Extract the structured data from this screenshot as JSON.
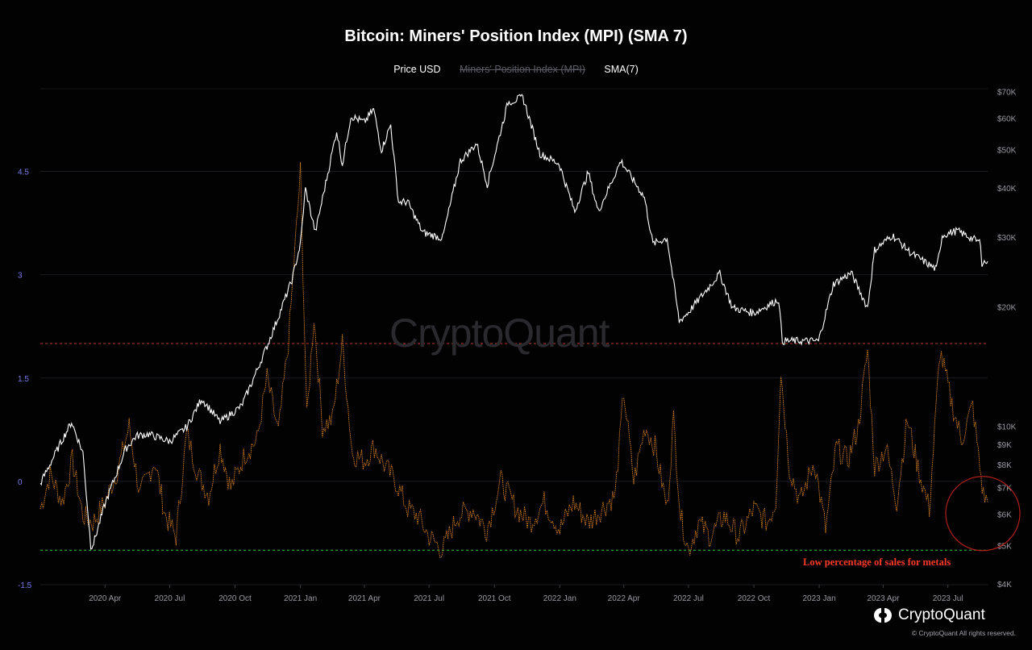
{
  "title": "Bitcoin: Miners' Position Index (MPI) (SMA 7)",
  "legend": {
    "price": "Price USD",
    "mpi": "Miners' Position Index (MPI)",
    "sma": "SMA(7)"
  },
  "watermark": "CryptoQuant",
  "annotation": "Low percentage of sales for metals",
  "brand": {
    "name": "CryptoQuant",
    "copyright": "© CryptoQuant All rights reserved."
  },
  "chart_data": {
    "type": "line",
    "title": "Bitcoin: Miners' Position Index (MPI) (SMA 7)",
    "x_ticks": [
      "2020 Apr",
      "2020 Jul",
      "2020 Oct",
      "2021 Jan",
      "2021 Apr",
      "2021 Jul",
      "2021 Oct",
      "2022 Jan",
      "2022 Apr",
      "2022 Jul",
      "2022 Oct",
      "2023 Jan",
      "2023 Apr",
      "2023 Jul"
    ],
    "xlim": [
      "2020-01-01",
      "2023-08-26"
    ],
    "left_axis": {
      "ticks": [
        4.5,
        3,
        1.5,
        0,
        -1.5
      ],
      "ylim": [
        -1.5,
        5.7
      ]
    },
    "right_axis": {
      "scale": "log",
      "ticks": [
        "$70K",
        "$60K",
        "$50K",
        "$40K",
        "$30K",
        "$20K",
        "$10K",
        "$9K",
        "$8K",
        "$7K",
        "$6K",
        "$5K",
        "$4K"
      ],
      "tick_values": [
        70000,
        60000,
        50000,
        40000,
        30000,
        20000,
        10000,
        9000,
        8000,
        7000,
        6000,
        5000,
        4000
      ],
      "ylim": [
        4000,
        71500
      ]
    },
    "reference_lines": [
      {
        "value": 2.0,
        "color": "#c0392b",
        "style": "dashed"
      },
      {
        "value": -1.0,
        "color": "#2ecc40",
        "style": "dashed"
      }
    ],
    "series": [
      {
        "name": "Price USD",
        "axis": "right",
        "color": "#ffffff",
        "points": [
          [
            "2020-01-01",
            7200
          ],
          [
            "2020-02-01",
            9300
          ],
          [
            "2020-02-14",
            10300
          ],
          [
            "2020-03-01",
            8600
          ],
          [
            "2020-03-12",
            5000
          ],
          [
            "2020-03-16",
            5100
          ],
          [
            "2020-04-01",
            6400
          ],
          [
            "2020-04-30",
            8800
          ],
          [
            "2020-05-15",
            9500
          ],
          [
            "2020-06-01",
            9600
          ],
          [
            "2020-07-01",
            9200
          ],
          [
            "2020-07-25",
            10000
          ],
          [
            "2020-08-15",
            11800
          ],
          [
            "2020-09-10",
            10300
          ],
          [
            "2020-10-10",
            11300
          ],
          [
            "2020-10-25",
            13000
          ],
          [
            "2020-11-15",
            16000
          ],
          [
            "2020-12-01",
            19000
          ],
          [
            "2020-12-20",
            23500
          ],
          [
            "2021-01-01",
            29000
          ],
          [
            "2021-01-08",
            40000
          ],
          [
            "2021-01-22",
            31000
          ],
          [
            "2021-02-10",
            45000
          ],
          [
            "2021-02-21",
            56000
          ],
          [
            "2021-03-01",
            46000
          ],
          [
            "2021-03-13",
            61000
          ],
          [
            "2021-04-01",
            58800
          ],
          [
            "2021-04-14",
            63500
          ],
          [
            "2021-04-25",
            50000
          ],
          [
            "2021-05-08",
            58000
          ],
          [
            "2021-05-19",
            37000
          ],
          [
            "2021-06-01",
            37000
          ],
          [
            "2021-06-22",
            31000
          ],
          [
            "2021-07-20",
            30000
          ],
          [
            "2021-08-14",
            47000
          ],
          [
            "2021-09-06",
            52000
          ],
          [
            "2021-09-21",
            41000
          ],
          [
            "2021-10-20",
            66000
          ],
          [
            "2021-11-10",
            68000
          ],
          [
            "2021-12-04",
            49000
          ],
          [
            "2021-12-31",
            46200
          ],
          [
            "2022-01-22",
            35000
          ],
          [
            "2022-02-10",
            44000
          ],
          [
            "2022-02-24",
            35000
          ],
          [
            "2022-03-28",
            47000
          ],
          [
            "2022-04-30",
            38000
          ],
          [
            "2022-05-12",
            29000
          ],
          [
            "2022-06-01",
            30000
          ],
          [
            "2022-06-18",
            18500
          ],
          [
            "2022-07-01",
            19500
          ],
          [
            "2022-08-14",
            24400
          ],
          [
            "2022-09-01",
            20000
          ],
          [
            "2022-10-01",
            19400
          ],
          [
            "2022-11-05",
            21000
          ],
          [
            "2022-11-10",
            16500
          ],
          [
            "2022-12-31",
            16500
          ],
          [
            "2023-01-21",
            23000
          ],
          [
            "2023-02-15",
            24500
          ],
          [
            "2023-03-10",
            20000
          ],
          [
            "2023-03-20",
            28000
          ],
          [
            "2023-04-14",
            30500
          ],
          [
            "2023-05-10",
            27500
          ],
          [
            "2023-06-15",
            25000
          ],
          [
            "2023-06-23",
            30500
          ],
          [
            "2023-07-14",
            31300
          ],
          [
            "2023-08-16",
            29200
          ],
          [
            "2023-08-18",
            26000
          ],
          [
            "2023-08-26",
            26200
          ]
        ]
      },
      {
        "name": "SMA(7)",
        "axis": "left",
        "color": "#f7931a",
        "points": [
          [
            "2020-01-01",
            -0.4
          ],
          [
            "2020-01-15",
            0.1
          ],
          [
            "2020-02-01",
            -0.3
          ],
          [
            "2020-02-15",
            0.3
          ],
          [
            "2020-03-01",
            -0.5
          ],
          [
            "2020-03-15",
            -0.6
          ],
          [
            "2020-04-01",
            -0.3
          ],
          [
            "2020-04-20",
            0.2
          ],
          [
            "2020-05-05",
            0.8
          ],
          [
            "2020-05-20",
            -0.2
          ],
          [
            "2020-06-10",
            0.3
          ],
          [
            "2020-06-25",
            -0.5
          ],
          [
            "2020-07-10",
            -0.8
          ],
          [
            "2020-07-25",
            0.7
          ],
          [
            "2020-08-10",
            0.1
          ],
          [
            "2020-08-25",
            -0.2
          ],
          [
            "2020-09-10",
            0.5
          ],
          [
            "2020-09-25",
            -0.1
          ],
          [
            "2020-10-15",
            0.4
          ],
          [
            "2020-11-01",
            0.6
          ],
          [
            "2020-11-15",
            1.5
          ],
          [
            "2020-12-01",
            0.7
          ],
          [
            "2020-12-15",
            2.0
          ],
          [
            "2021-01-01",
            4.5
          ],
          [
            "2021-01-10",
            0.9
          ],
          [
            "2021-01-20",
            2.4
          ],
          [
            "2021-02-01",
            0.8
          ],
          [
            "2021-02-15",
            0.9
          ],
          [
            "2021-03-01",
            2.0
          ],
          [
            "2021-03-15",
            0.4
          ],
          [
            "2021-04-01",
            0.3
          ],
          [
            "2021-04-15",
            0.5
          ],
          [
            "2021-05-01",
            0.2
          ],
          [
            "2021-05-15",
            0.0
          ],
          [
            "2021-06-01",
            -0.4
          ],
          [
            "2021-06-15",
            -0.5
          ],
          [
            "2021-07-01",
            -0.8
          ],
          [
            "2021-07-20",
            -1.0
          ],
          [
            "2021-08-10",
            -0.5
          ],
          [
            "2021-09-01",
            -0.4
          ],
          [
            "2021-09-20",
            -0.7
          ],
          [
            "2021-10-10",
            0.0
          ],
          [
            "2021-11-01",
            -0.4
          ],
          [
            "2021-11-20",
            -0.6
          ],
          [
            "2021-12-10",
            -0.3
          ],
          [
            "2022-01-01",
            -0.7
          ],
          [
            "2022-01-20",
            -0.3
          ],
          [
            "2022-02-10",
            -0.6
          ],
          [
            "2022-03-01",
            -0.4
          ],
          [
            "2022-03-20",
            -0.2
          ],
          [
            "2022-04-01",
            1.3
          ],
          [
            "2022-04-15",
            0.0
          ],
          [
            "2022-05-01",
            0.8
          ],
          [
            "2022-05-15",
            0.5
          ],
          [
            "2022-06-01",
            -0.4
          ],
          [
            "2022-06-10",
            0.9
          ],
          [
            "2022-06-20",
            -0.5
          ],
          [
            "2022-07-01",
            -1.0
          ],
          [
            "2022-07-15",
            -0.6
          ],
          [
            "2022-08-01",
            -0.8
          ],
          [
            "2022-08-20",
            -0.5
          ],
          [
            "2022-09-10",
            -0.8
          ],
          [
            "2022-10-01",
            -0.4
          ],
          [
            "2022-10-20",
            -0.6
          ],
          [
            "2022-11-01",
            -0.3
          ],
          [
            "2022-11-08",
            1.6
          ],
          [
            "2022-11-20",
            0.2
          ],
          [
            "2022-12-05",
            -0.3
          ],
          [
            "2022-12-25",
            0.3
          ],
          [
            "2023-01-10",
            -0.7
          ],
          [
            "2023-01-25",
            0.5
          ],
          [
            "2023-02-10",
            0.3
          ],
          [
            "2023-02-25",
            0.8
          ],
          [
            "2023-03-10",
            1.9
          ],
          [
            "2023-03-20",
            0.2
          ],
          [
            "2023-04-05",
            0.5
          ],
          [
            "2023-04-20",
            -0.3
          ],
          [
            "2023-05-05",
            0.9
          ],
          [
            "2023-05-20",
            0.2
          ],
          [
            "2023-06-05",
            -0.4
          ],
          [
            "2023-06-20",
            1.9
          ],
          [
            "2023-07-05",
            1.2
          ],
          [
            "2023-07-20",
            0.6
          ],
          [
            "2023-08-05",
            1.1
          ],
          [
            "2023-08-15",
            0.2
          ],
          [
            "2023-08-20",
            -0.2
          ],
          [
            "2023-08-26",
            -0.3
          ]
        ]
      }
    ],
    "highlight_circle": {
      "center_date": "2023-08-26",
      "center_value": -0.35
    }
  }
}
